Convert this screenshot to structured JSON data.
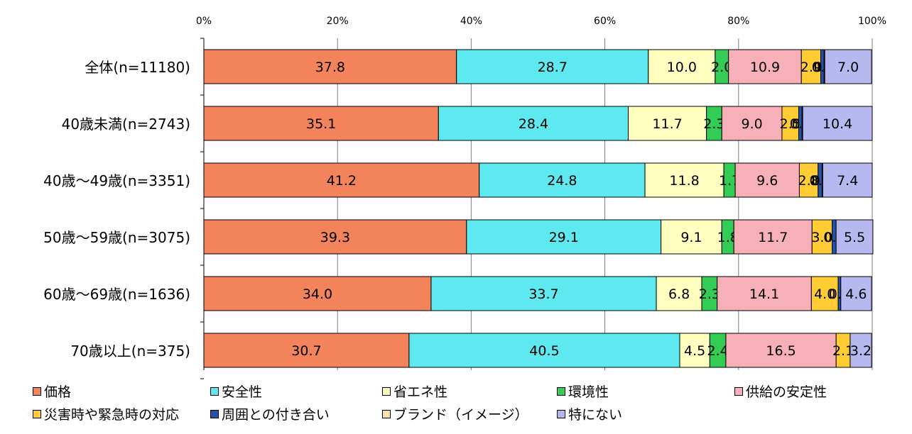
{
  "chart_data": {
    "type": "bar",
    "orientation": "horizontal",
    "stacked": "percent",
    "x_ticks": [
      "0%",
      "20%",
      "40%",
      "60%",
      "80%",
      "100%"
    ],
    "xlim": [
      0,
      100
    ],
    "grid": true,
    "legend_position": "bottom",
    "categories": [
      "全体(n=11180)",
      "40歳未満(n=2743)",
      "40歳～49歳(n=3351)",
      "50歳～59歳(n=3075)",
      "60歳～69歳(n=1636)",
      "70歳以上(n=375)"
    ],
    "series": [
      {
        "name": "価格",
        "color": "#f3835a",
        "values": [
          37.8,
          35.1,
          41.2,
          39.3,
          34.0,
          30.7
        ],
        "labels": [
          "37.8",
          "35.1",
          "41.2",
          "39.3",
          "34.0",
          "30.7"
        ]
      },
      {
        "name": "安全性",
        "color": "#5ee8f0",
        "values": [
          28.7,
          28.4,
          24.8,
          29.1,
          33.7,
          40.5
        ],
        "labels": [
          "28.7",
          "28.4",
          "24.8",
          "29.1",
          "33.7",
          "40.5"
        ]
      },
      {
        "name": "省エネ性",
        "color": "#ffffc0",
        "values": [
          10.0,
          11.7,
          11.8,
          9.1,
          6.8,
          4.5
        ],
        "labels": [
          "10.0",
          "11.7",
          "11.8",
          "9.1",
          "6.8",
          "4.5"
        ]
      },
      {
        "name": "環境性",
        "color": "#33cc55",
        "values": [
          2.0,
          2.3,
          1.7,
          1.8,
          2.3,
          2.4
        ],
        "labels": [
          "2.0",
          "2.3",
          "1.7",
          "1.8",
          "2.3",
          "2.4"
        ]
      },
      {
        "name": "供給の安定性",
        "color": "#f8b0b8",
        "values": [
          10.9,
          9.0,
          9.6,
          11.7,
          14.1,
          16.5
        ],
        "labels": [
          "10.9",
          "9.0",
          "9.6",
          "11.7",
          "14.1",
          "16.5"
        ]
      },
      {
        "name": "災害時や緊急時の対応",
        "color": "#ffcc33",
        "values": [
          2.9,
          2.5,
          2.8,
          3.0,
          4.0,
          2.1
        ],
        "labels": [
          "2.9",
          "2.5",
          "2.8",
          "3.0",
          "4.0",
          "2.1"
        ]
      },
      {
        "name": "周囲との付き合い",
        "color": "#2255aa",
        "values": [
          0.5,
          0.5,
          0.6,
          0.6,
          0.4,
          0.0
        ],
        "labels": [
          "0.5",
          "0.5",
          "0.6",
          "0.6",
          "0.4",
          ""
        ]
      },
      {
        "name": "ブランド（イメージ）",
        "color": "#ffe0b0",
        "values": [
          0.1,
          0.1,
          0.1,
          0.0,
          0.0,
          0.0
        ],
        "labels": [
          "0.1",
          "0.1",
          "0.1",
          "",
          "",
          ""
        ]
      },
      {
        "name": "特にない",
        "color": "#b8b8f0",
        "values": [
          7.0,
          10.4,
          7.4,
          5.5,
          4.6,
          3.2
        ],
        "labels": [
          "7.0",
          "10.4",
          "7.4",
          "5.5",
          "4.6",
          "3.2"
        ]
      }
    ]
  }
}
